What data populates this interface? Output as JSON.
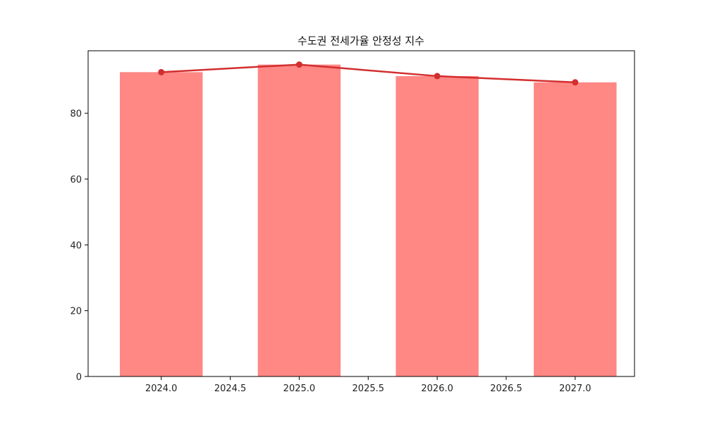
{
  "chart_data": {
    "type": "bar",
    "title": "수도권 전세가율 안정성 지수",
    "xlabel": "",
    "ylabel": "",
    "x": [
      2024,
      2025,
      2026,
      2027
    ],
    "xlim": [
      2023.47,
      2027.43
    ],
    "ylim": [
      0,
      99
    ],
    "xticks": [
      2024.0,
      2024.5,
      2025.0,
      2025.5,
      2026.0,
      2026.5,
      2027.0
    ],
    "xtick_labels": [
      "2024.0",
      "2024.5",
      "2025.0",
      "2025.5",
      "2026.0",
      "2026.5",
      "2027.0"
    ],
    "yticks": [
      0,
      20,
      40,
      60,
      80
    ],
    "ytick_labels": [
      "0",
      "20",
      "40",
      "60",
      "80"
    ],
    "bar_width": 0.6,
    "series": [
      {
        "type": "bar",
        "values": [
          92.5,
          94.8,
          91.3,
          89.4
        ],
        "color": "#ff8784"
      },
      {
        "type": "line",
        "values": [
          92.5,
          94.8,
          91.3,
          89.4
        ],
        "color": "#d22f2f",
        "marker": "circle"
      }
    ],
    "grid": false,
    "legend": "none"
  }
}
